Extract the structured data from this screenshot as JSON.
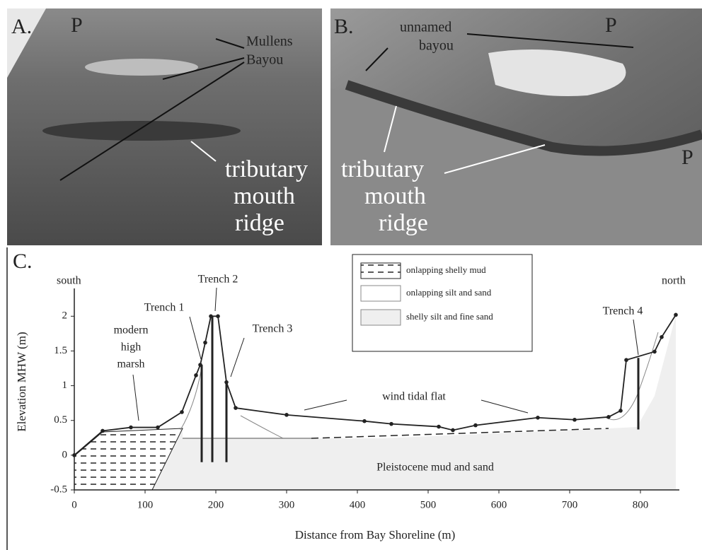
{
  "panel_a": {
    "label": "A.",
    "marker": "P",
    "bayou_name": [
      "Mullens",
      "Bayou"
    ],
    "feature": [
      "tributary",
      "mouth",
      "ridge"
    ]
  },
  "panel_b": {
    "label": "B.",
    "markers": [
      "P",
      "P"
    ],
    "bayou_name": [
      "unnamed",
      "bayou"
    ],
    "feature": [
      "tributary",
      "mouth",
      "ridge"
    ]
  },
  "chart_data": {
    "type": "line",
    "panel_label": "C.",
    "xlabel": "Distance from Bay Shoreline (m)",
    "ylabel": "Elevation MHW (m)",
    "xlim": [
      0,
      850
    ],
    "ylim": [
      -0.5,
      2.4
    ],
    "xticks": [
      0,
      100,
      200,
      300,
      400,
      500,
      600,
      700,
      800
    ],
    "yticks": [
      -0.5,
      0,
      0.5,
      1,
      1.5,
      2
    ],
    "series": [
      {
        "name": "profile",
        "color": "#222222",
        "x": [
          0,
          40,
          80,
          118,
          152,
          172,
          178,
          185,
          193,
          203,
          215,
          228,
          300,
          410,
          448,
          515,
          535,
          567,
          655,
          707,
          755,
          772,
          780,
          820,
          830,
          850
        ],
        "values": [
          0,
          0.35,
          0.4,
          0.4,
          0.62,
          1.15,
          1.3,
          1.62,
          2.0,
          2.0,
          1.05,
          0.68,
          0.58,
          0.49,
          0.45,
          0.41,
          0.36,
          0.43,
          0.54,
          0.51,
          0.55,
          0.64,
          1.37,
          1.49,
          1.7,
          2.02
        ]
      }
    ],
    "trenches": [
      {
        "label": "Trench 1",
        "x": 180,
        "top": 1.3,
        "bottom": -0.1
      },
      {
        "label": "Trench 2",
        "x": 195,
        "top": 2.0,
        "bottom": -0.1
      },
      {
        "label": "Trench 3",
        "x": 215,
        "top": 1.05,
        "bottom": -0.1
      },
      {
        "label": "Trench 4",
        "x": 797,
        "top": 1.4,
        "bottom": 0.37
      }
    ],
    "legend": [
      "onlapping shelly mud",
      "onlapping silt and sand",
      "shelly silt and fine sand"
    ],
    "annotations": {
      "south": "south",
      "north": "north",
      "marsh": [
        "modern",
        "high",
        "marsh"
      ],
      "flat": "wind tidal flat",
      "base": "Pleistocene mud and sand"
    }
  }
}
